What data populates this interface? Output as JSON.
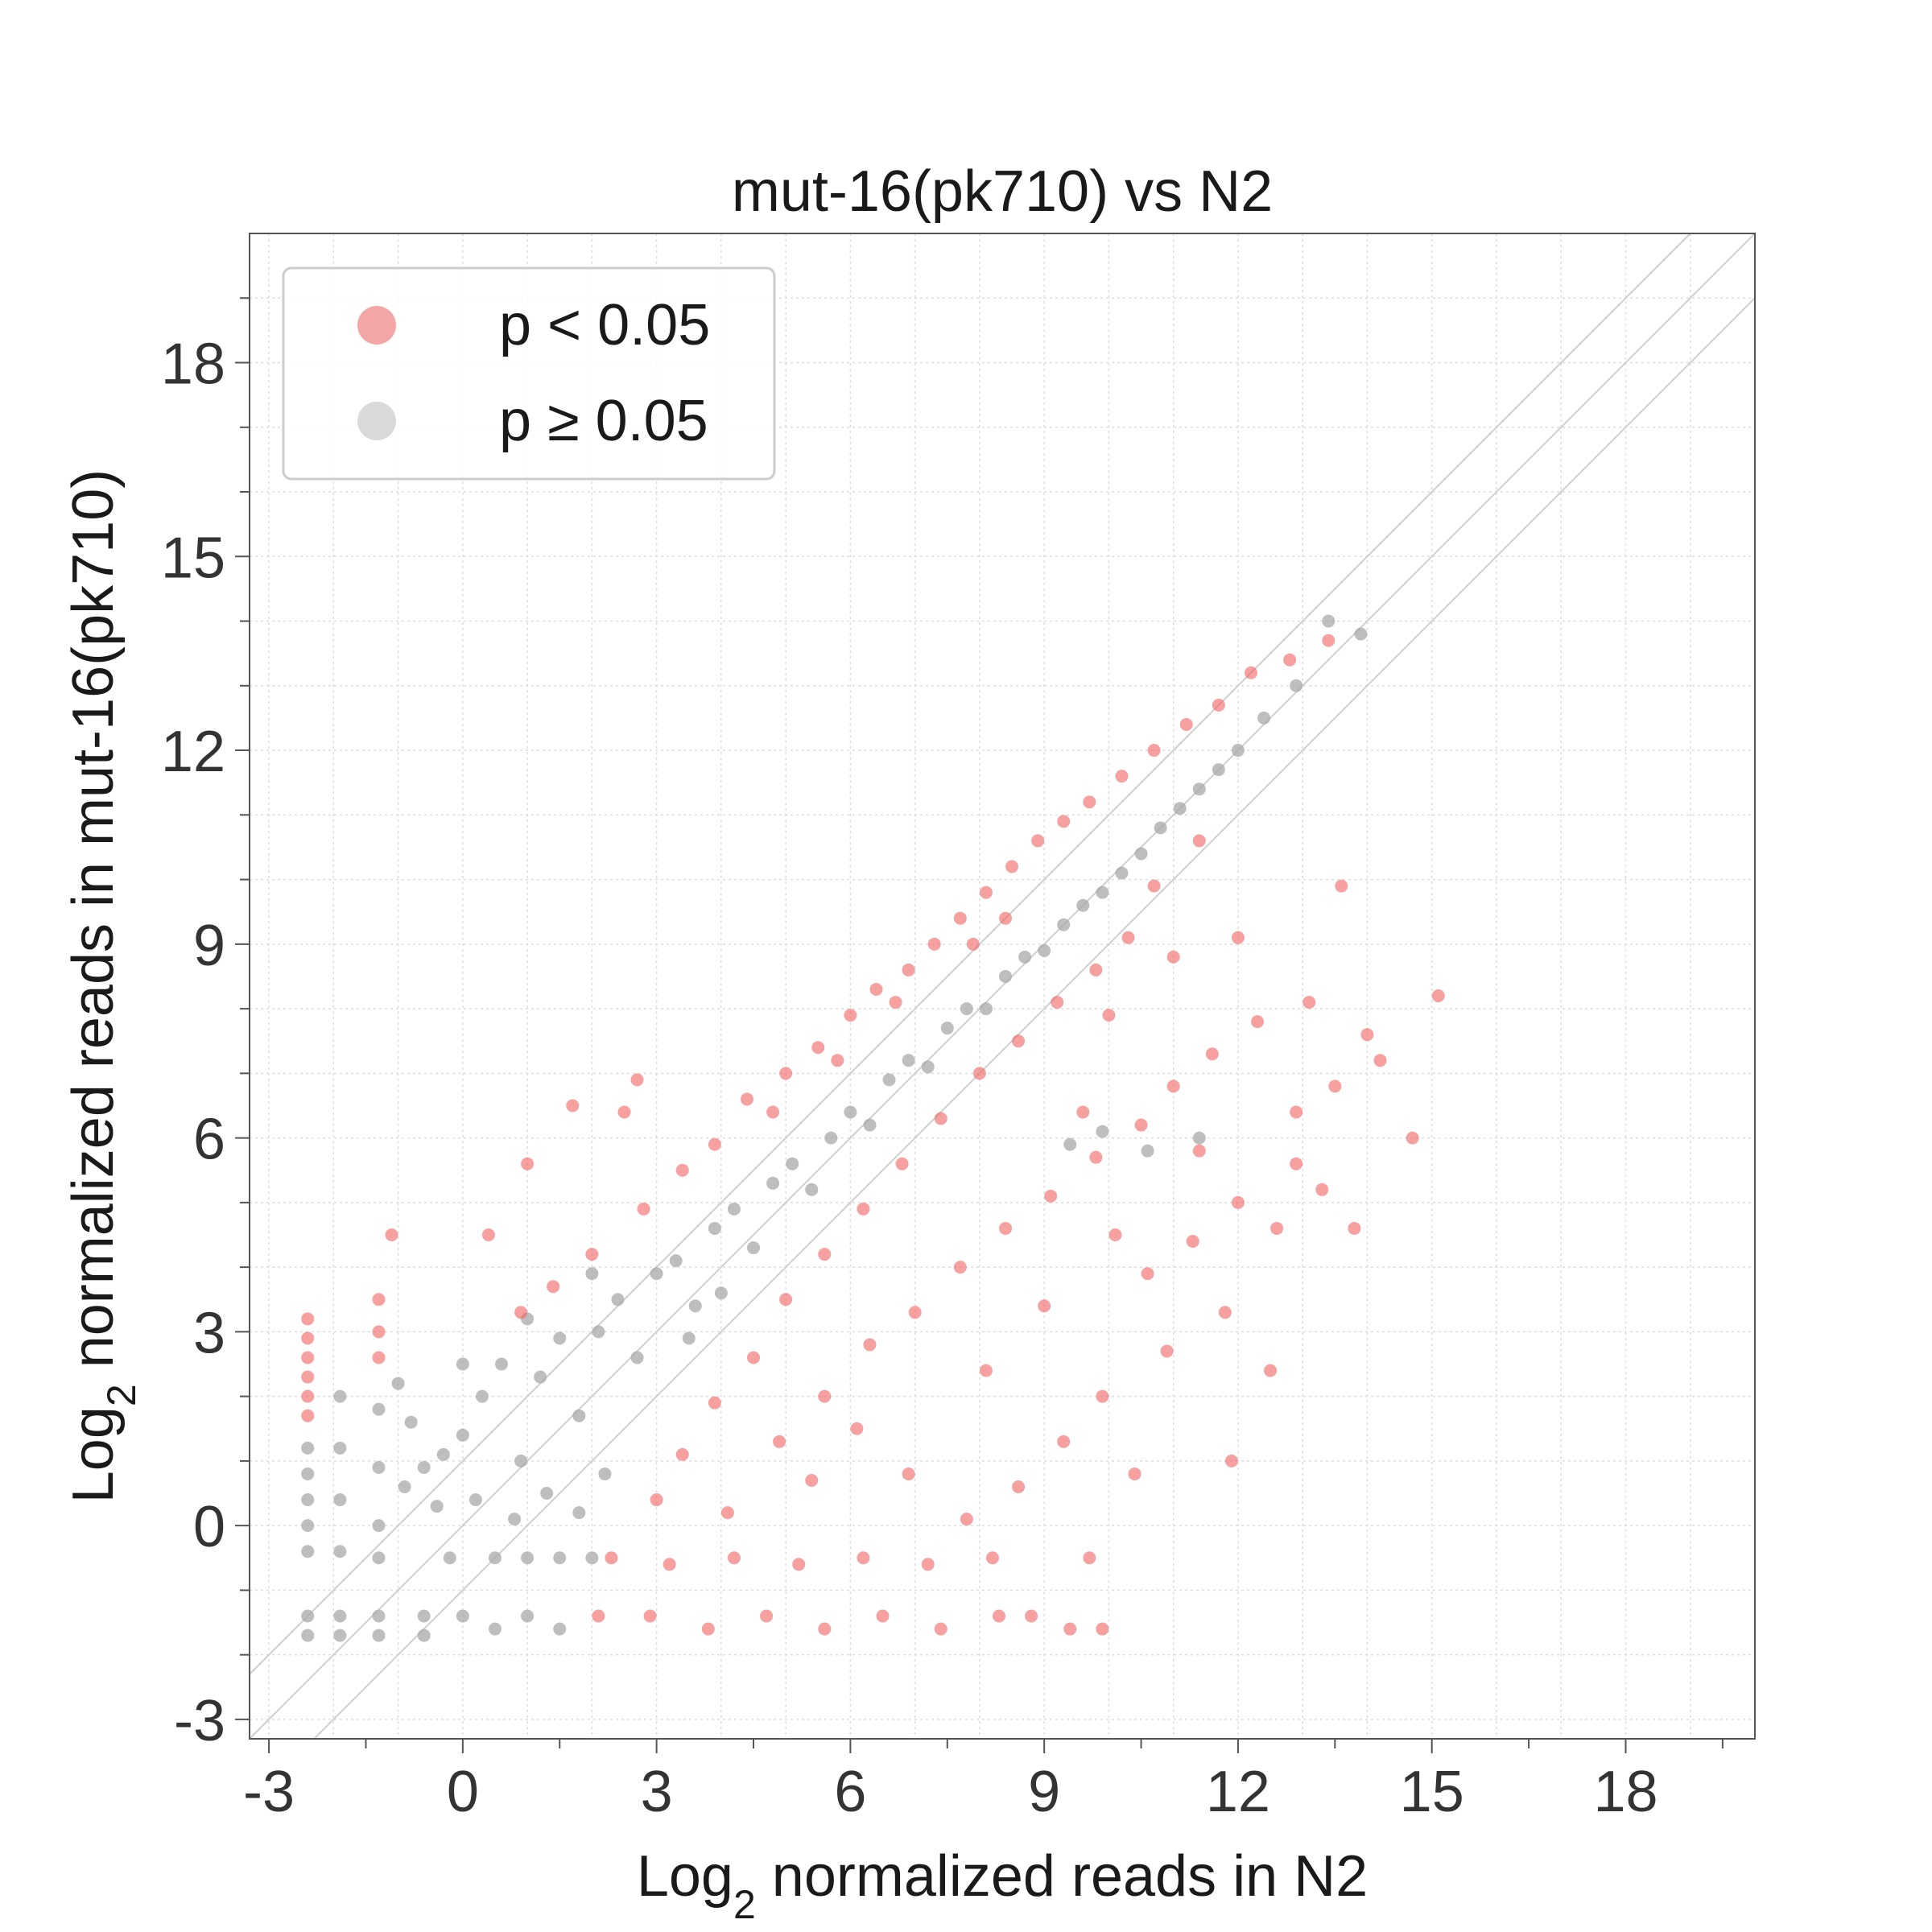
{
  "chart_data": {
    "type": "scatter",
    "title": "mut-16(pk710) vs N2",
    "xlabel": {
      "prefix": "Log",
      "subscript": "2",
      "suffix": " normalized reads in N2"
    },
    "ylabel": {
      "prefix": "Log",
      "subscript": "2",
      "suffix": " normalized reads in mut-16(pk710)"
    },
    "xlim": [
      -3.3,
      20
    ],
    "ylim": [
      -3.3,
      20
    ],
    "xticks": [
      "-3",
      "0",
      "3",
      "6",
      "9",
      "12",
      "15",
      "18"
    ],
    "yticks": [
      "-3",
      "0",
      "3",
      "6",
      "9",
      "12",
      "15",
      "18"
    ],
    "grid": true,
    "legend_position": "top-left",
    "reference_lines": [
      {
        "slope": 1,
        "intercept": 1
      },
      {
        "slope": 1,
        "intercept": 0
      },
      {
        "slope": 1,
        "intercept": -1
      }
    ],
    "series": [
      {
        "name": "p < 0.05",
        "color": "#f06060",
        "legend_color": "#f4a6a6"
      },
      {
        "name": "p ≥ 0.05",
        "color": "#a8a8a8",
        "legend_color": "#d9d9d9"
      }
    ],
    "points": {
      "significant": [
        [
          -2.4,
          3.2
        ],
        [
          -2.4,
          2.9
        ],
        [
          -2.4,
          2.6
        ],
        [
          -2.4,
          2.3
        ],
        [
          -2.4,
          2.0
        ],
        [
          -2.4,
          1.7
        ],
        [
          -1.3,
          3.5
        ],
        [
          -1.3,
          3.0
        ],
        [
          -1.3,
          2.6
        ],
        [
          0.4,
          4.5
        ],
        [
          1.0,
          5.6
        ],
        [
          1.7,
          6.5
        ],
        [
          2.7,
          6.9
        ],
        [
          2.5,
          6.4
        ],
        [
          -1.1,
          4.5
        ],
        [
          0.9,
          3.3
        ],
        [
          1.4,
          3.7
        ],
        [
          2.0,
          4.2
        ],
        [
          2.8,
          4.9
        ],
        [
          3.4,
          5.5
        ],
        [
          3.9,
          5.9
        ],
        [
          4.4,
          6.6
        ],
        [
          5.0,
          7.0
        ],
        [
          5.5,
          7.4
        ],
        [
          6.0,
          7.9
        ],
        [
          6.4,
          8.3
        ],
        [
          6.9,
          8.6
        ],
        [
          7.3,
          9.0
        ],
        [
          7.7,
          9.4
        ],
        [
          8.1,
          9.8
        ],
        [
          8.5,
          10.2
        ],
        [
          8.9,
          10.6
        ],
        [
          9.3,
          10.9
        ],
        [
          9.7,
          11.2
        ],
        [
          10.2,
          11.6
        ],
        [
          10.7,
          12.0
        ],
        [
          11.2,
          12.4
        ],
        [
          11.7,
          12.7
        ],
        [
          12.2,
          13.2
        ],
        [
          12.8,
          13.4
        ],
        [
          13.4,
          13.7
        ],
        [
          4.8,
          6.4
        ],
        [
          5.8,
          7.2
        ],
        [
          6.7,
          8.1
        ],
        [
          7.9,
          9.0
        ],
        [
          3.0,
          0.4
        ],
        [
          3.4,
          1.1
        ],
        [
          3.9,
          1.9
        ],
        [
          4.5,
          2.6
        ],
        [
          5.0,
          3.5
        ],
        [
          5.6,
          4.2
        ],
        [
          6.2,
          4.9
        ],
        [
          6.8,
          5.6
        ],
        [
          7.4,
          6.3
        ],
        [
          8.0,
          7.0
        ],
        [
          8.6,
          7.5
        ],
        [
          9.2,
          8.1
        ],
        [
          9.8,
          8.6
        ],
        [
          10.3,
          9.1
        ],
        [
          4.1,
          0.2
        ],
        [
          4.9,
          1.3
        ],
        [
          5.6,
          2.0
        ],
        [
          6.3,
          2.8
        ],
        [
          7.0,
          3.3
        ],
        [
          7.7,
          4.0
        ],
        [
          8.4,
          4.6
        ],
        [
          9.1,
          5.1
        ],
        [
          9.8,
          5.7
        ],
        [
          10.5,
          6.2
        ],
        [
          11.0,
          6.8
        ],
        [
          11.6,
          7.3
        ],
        [
          12.3,
          7.8
        ],
        [
          13.1,
          8.1
        ],
        [
          14.0,
          7.6
        ],
        [
          14.7,
          6.0
        ],
        [
          15.1,
          8.2
        ],
        [
          13.5,
          6.8
        ],
        [
          12.0,
          5.0
        ],
        [
          11.3,
          4.4
        ],
        [
          10.6,
          3.9
        ],
        [
          12.6,
          4.6
        ],
        [
          11.8,
          3.3
        ],
        [
          10.9,
          2.7
        ],
        [
          9.9,
          2.0
        ],
        [
          9.3,
          1.3
        ],
        [
          8.6,
          0.6
        ],
        [
          7.8,
          0.1
        ],
        [
          6.9,
          0.8
        ],
        [
          6.1,
          1.5
        ],
        [
          5.4,
          0.7
        ],
        [
          8.1,
          2.4
        ],
        [
          9.0,
          3.4
        ],
        [
          10.1,
          4.5
        ],
        [
          11.4,
          5.8
        ],
        [
          12.9,
          5.6
        ],
        [
          13.3,
          5.2
        ],
        [
          14.2,
          7.2
        ],
        [
          13.8,
          4.6
        ],
        [
          12.5,
          2.4
        ],
        [
          11.9,
          1.0
        ],
        [
          10.4,
          0.8
        ],
        [
          9.7,
          -0.5
        ],
        [
          3.2,
          -0.6
        ],
        [
          4.2,
          -0.5
        ],
        [
          5.2,
          -0.6
        ],
        [
          6.2,
          -0.5
        ],
        [
          7.2,
          -0.6
        ],
        [
          8.2,
          -0.5
        ],
        [
          2.3,
          -0.5
        ],
        [
          2.1,
          -1.4
        ],
        [
          2.9,
          -1.4
        ],
        [
          3.8,
          -1.6
        ],
        [
          4.7,
          -1.4
        ],
        [
          5.6,
          -1.6
        ],
        [
          6.5,
          -1.4
        ],
        [
          7.4,
          -1.6
        ],
        [
          8.3,
          -1.4
        ],
        [
          8.8,
          -1.4
        ],
        [
          9.4,
          -1.6
        ],
        [
          9.9,
          -1.6
        ],
        [
          10.7,
          9.9
        ],
        [
          11.4,
          10.6
        ],
        [
          13.6,
          9.9
        ],
        [
          12.9,
          6.4
        ],
        [
          10.0,
          7.9
        ],
        [
          11.0,
          8.8
        ],
        [
          12.0,
          9.1
        ],
        [
          8.4,
          9.4
        ],
        [
          9.6,
          6.4
        ]
      ],
      "nonsignificant": [
        [
          -2.4,
          1.2
        ],
        [
          -2.4,
          0.8
        ],
        [
          -2.4,
          0.4
        ],
        [
          -2.4,
          0.0
        ],
        [
          -2.4,
          -0.4
        ],
        [
          -2.4,
          -1.4
        ],
        [
          -2.4,
          -1.7
        ],
        [
          -1.9,
          2.0
        ],
        [
          -1.9,
          1.2
        ],
        [
          -1.9,
          0.4
        ],
        [
          -1.9,
          -0.4
        ],
        [
          -1.9,
          -1.4
        ],
        [
          -1.9,
          -1.7
        ],
        [
          -1.3,
          1.8
        ],
        [
          -1.3,
          0.9
        ],
        [
          -1.3,
          0.0
        ],
        [
          -1.3,
          -0.5
        ],
        [
          -1.3,
          -1.4
        ],
        [
          -1.3,
          -1.7
        ],
        [
          -1.0,
          2.2
        ],
        [
          -0.8,
          1.6
        ],
        [
          -0.6,
          0.9
        ],
        [
          -0.4,
          0.3
        ],
        [
          -0.2,
          -0.5
        ],
        [
          0.0,
          1.4
        ],
        [
          0.3,
          2.0
        ],
        [
          0.6,
          2.5
        ],
        [
          0.9,
          1.0
        ],
        [
          1.2,
          2.3
        ],
        [
          1.5,
          2.9
        ],
        [
          1.8,
          1.7
        ],
        [
          2.1,
          3.0
        ],
        [
          2.4,
          3.5
        ],
        [
          2.7,
          2.6
        ],
        [
          3.0,
          3.9
        ],
        [
          3.3,
          4.1
        ],
        [
          3.6,
          3.4
        ],
        [
          3.9,
          4.6
        ],
        [
          4.2,
          4.9
        ],
        [
          4.5,
          4.3
        ],
        [
          4.8,
          5.3
        ],
        [
          5.1,
          5.6
        ],
        [
          5.4,
          5.2
        ],
        [
          5.7,
          6.0
        ],
        [
          6.0,
          6.4
        ],
        [
          6.3,
          6.2
        ],
        [
          6.6,
          6.9
        ],
        [
          6.9,
          7.2
        ],
        [
          7.2,
          7.1
        ],
        [
          7.5,
          7.7
        ],
        [
          7.8,
          8.0
        ],
        [
          8.1,
          8.0
        ],
        [
          8.4,
          8.5
        ],
        [
          8.7,
          8.8
        ],
        [
          9.0,
          8.9
        ],
        [
          9.3,
          9.3
        ],
        [
          9.6,
          9.6
        ],
        [
          9.9,
          9.8
        ],
        [
          10.2,
          10.1
        ],
        [
          10.5,
          10.4
        ],
        [
          10.8,
          10.8
        ],
        [
          11.1,
          11.1
        ],
        [
          11.4,
          11.4
        ],
        [
          11.7,
          11.7
        ],
        [
          12.0,
          12.0
        ],
        [
          12.4,
          12.5
        ],
        [
          12.9,
          13.0
        ],
        [
          13.4,
          14.0
        ],
        [
          13.9,
          13.8
        ],
        [
          0.5,
          -0.5
        ],
        [
          1.0,
          -0.5
        ],
        [
          1.5,
          -0.5
        ],
        [
          2.0,
          -0.5
        ],
        [
          0.0,
          -1.4
        ],
        [
          0.5,
          -1.6
        ],
        [
          1.0,
          -1.4
        ],
        [
          1.5,
          -1.6
        ],
        [
          -0.6,
          -1.4
        ],
        [
          -0.6,
          -1.7
        ],
        [
          0.2,
          0.4
        ],
        [
          0.8,
          0.1
        ],
        [
          1.3,
          0.5
        ],
        [
          1.8,
          0.2
        ],
        [
          2.2,
          0.8
        ],
        [
          -0.9,
          0.6
        ],
        [
          9.4,
          5.9
        ],
        [
          9.9,
          6.1
        ],
        [
          10.6,
          5.8
        ],
        [
          11.4,
          6.0
        ],
        [
          0.0,
          2.5
        ],
        [
          1.0,
          3.2
        ],
        [
          2.0,
          3.9
        ],
        [
          -0.3,
          1.1
        ],
        [
          3.5,
          2.9
        ],
        [
          4.0,
          3.6
        ]
      ]
    }
  }
}
